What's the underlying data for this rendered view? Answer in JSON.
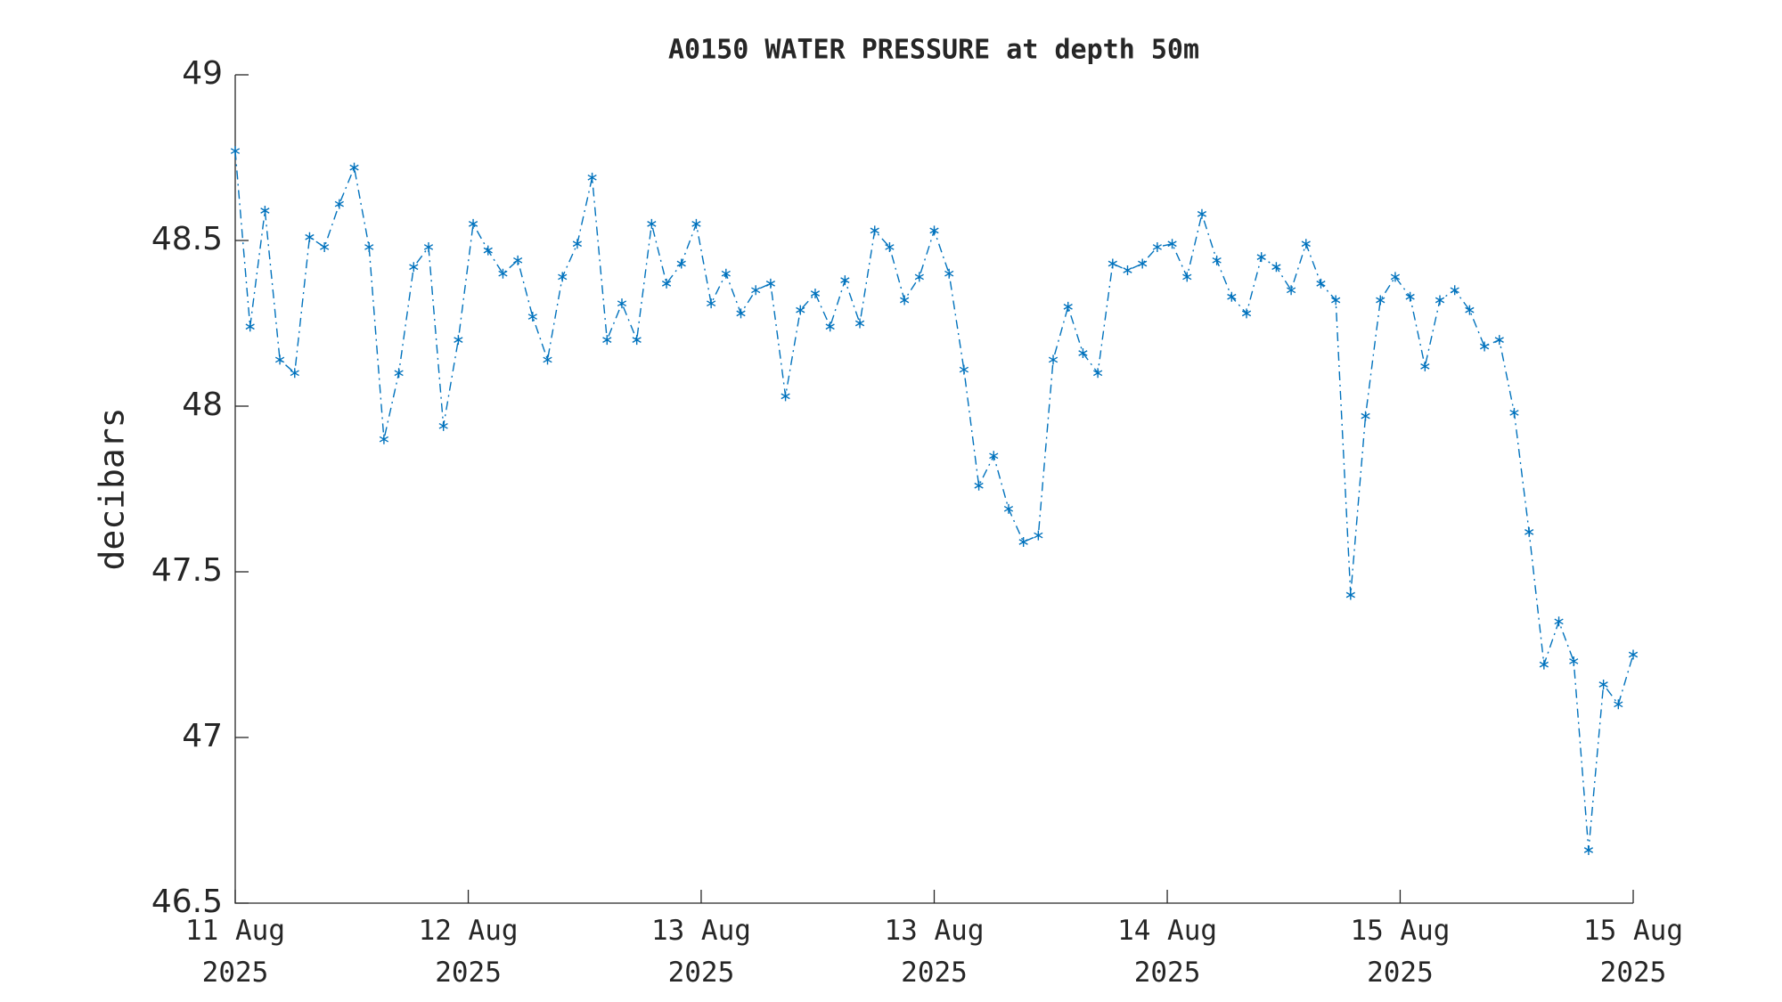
{
  "chart_data": {
    "type": "line",
    "title": "A0150 WATER PRESSURE at depth 50m",
    "y_label": "decibars",
    "x": [
      0,
      1,
      2,
      3,
      4,
      5,
      6,
      7,
      8,
      9,
      10,
      11,
      12,
      13,
      14,
      15,
      16,
      17,
      18,
      19,
      20,
      21,
      22,
      23,
      24,
      25,
      26,
      27,
      28,
      29,
      30,
      31,
      32,
      33,
      34,
      35,
      36,
      37,
      38,
      39,
      40,
      41,
      42,
      43,
      44,
      45,
      46,
      47,
      48,
      49,
      50,
      51,
      52,
      53,
      54,
      55,
      56,
      57,
      58,
      59,
      60,
      61,
      62,
      63,
      64,
      65,
      66,
      67,
      68,
      69,
      70,
      71,
      72,
      73,
      74,
      75,
      76,
      77,
      78,
      79,
      80,
      81,
      82,
      83,
      84,
      85,
      86,
      87,
      88,
      89,
      90,
      91,
      92,
      93,
      94
    ],
    "series": [
      {
        "color": "#0072bd",
        "values": [
          48.77,
          48.24,
          48.59,
          48.14,
          48.1,
          48.51,
          48.48,
          48.61,
          48.72,
          48.48,
          47.9,
          48.1,
          48.42,
          48.48,
          47.94,
          48.2,
          48.55,
          48.47,
          48.4,
          48.44,
          48.27,
          48.14,
          48.39,
          48.49,
          48.69,
          48.2,
          48.31,
          48.2,
          48.55,
          48.37,
          48.43,
          48.55,
          48.31,
          48.4,
          48.28,
          48.35,
          48.37,
          48.03,
          48.29,
          48.34,
          48.24,
          48.38,
          48.25,
          48.53,
          48.48,
          48.32,
          48.39,
          48.53,
          48.4,
          48.11,
          47.76,
          47.85,
          47.69,
          47.59,
          47.61,
          48.14,
          48.3,
          48.16,
          48.1,
          48.43,
          48.41,
          48.43,
          48.48,
          48.49,
          48.39,
          48.58,
          48.44,
          48.33,
          48.28,
          48.45,
          48.42,
          48.35,
          48.49,
          48.37,
          48.32,
          47.43,
          47.97,
          48.32,
          48.39,
          48.33,
          48.12,
          48.32,
          48.35,
          48.29,
          48.18,
          48.2,
          47.98,
          47.62,
          47.22,
          47.35,
          47.23,
          46.66,
          47.16,
          47.1,
          47.25
        ]
      }
    ],
    "xlim": [
      0,
      94
    ],
    "xticks": [
      {
        "value": 0,
        "label": "11 Aug\n2025"
      },
      {
        "value": 15.67,
        "label": "12 Aug\n2025"
      },
      {
        "value": 31.33,
        "label": "13 Aug\n2025"
      },
      {
        "value": 47,
        "label": "13 Aug\n2025"
      },
      {
        "value": 62.67,
        "label": "14 Aug\n2025"
      },
      {
        "value": 78.33,
        "label": "15 Aug\n2025"
      },
      {
        "value": 94,
        "label": "15 Aug\n2025"
      }
    ],
    "ylim": [
      46.5,
      49
    ],
    "yticks": [
      {
        "value": 46.5,
        "label": "46.5"
      },
      47,
      {
        "value": 47.5,
        "label": "47.5"
      },
      48,
      {
        "value": 48.5,
        "label": "48.5"
      },
      49
    ],
    "grid": false
  }
}
